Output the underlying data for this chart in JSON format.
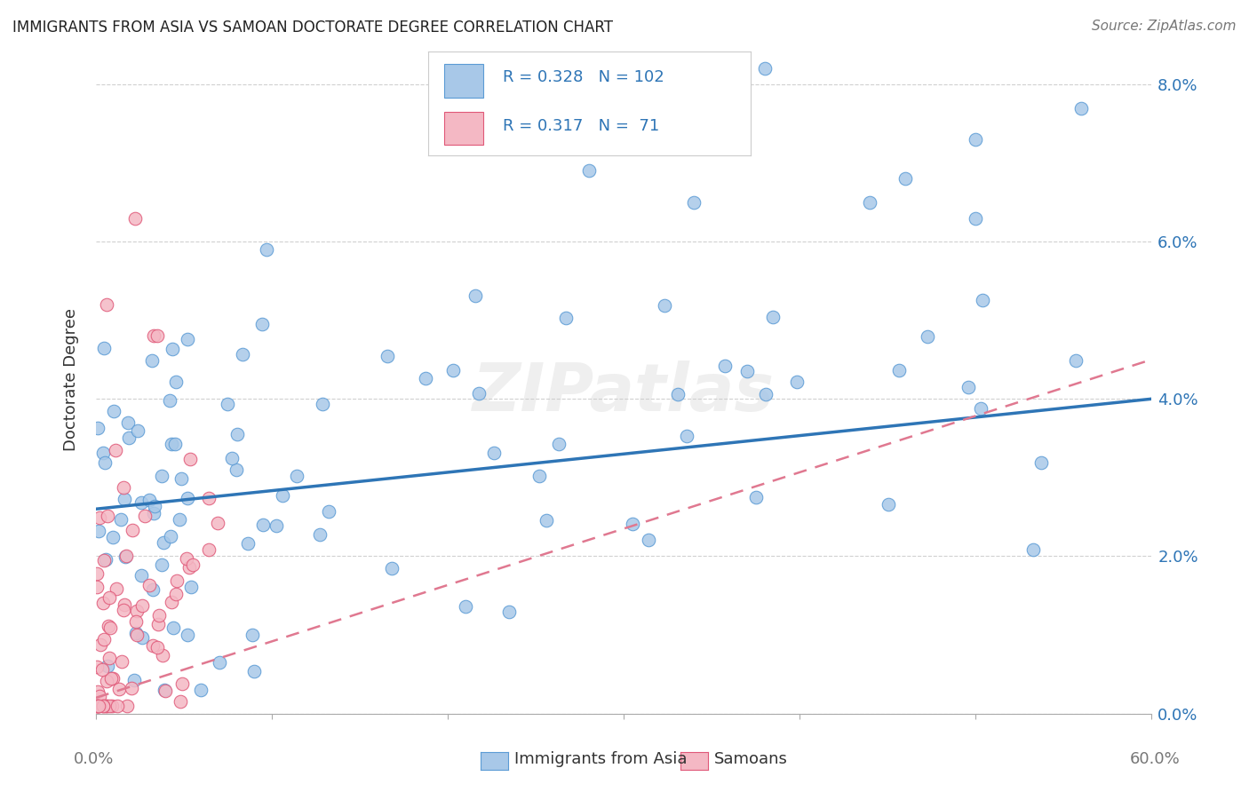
{
  "title": "IMMIGRANTS FROM ASIA VS SAMOAN DOCTORATE DEGREE CORRELATION CHART",
  "source": "Source: ZipAtlas.com",
  "ylabel": "Doctorate Degree",
  "xlim": [
    0.0,
    0.6
  ],
  "ylim": [
    0.0,
    0.085
  ],
  "y_ticks": [
    0.0,
    0.02,
    0.04,
    0.06,
    0.08
  ],
  "color_asia": "#a8c8e8",
  "color_asia_edge": "#5b9bd5",
  "color_asia_line": "#2e75b6",
  "color_samoan": "#f4b8c4",
  "color_samoan_edge": "#e05878",
  "color_samoan_line": "#e07890",
  "color_legend_text": "#2e75b6",
  "color_legend_n": "#2e75b6",
  "background_color": "#ffffff",
  "grid_color": "#d0d0d0",
  "watermark": "ZIPatlas",
  "legend_r_asia": "R = 0.328",
  "legend_n_asia": "N = 102",
  "legend_r_samoan": "R = 0.317",
  "legend_n_samoan": "N =  71",
  "asia_intercept": 0.026,
  "asia_slope": 0.024,
  "samoan_intercept": 0.001,
  "samoan_slope": 0.068
}
